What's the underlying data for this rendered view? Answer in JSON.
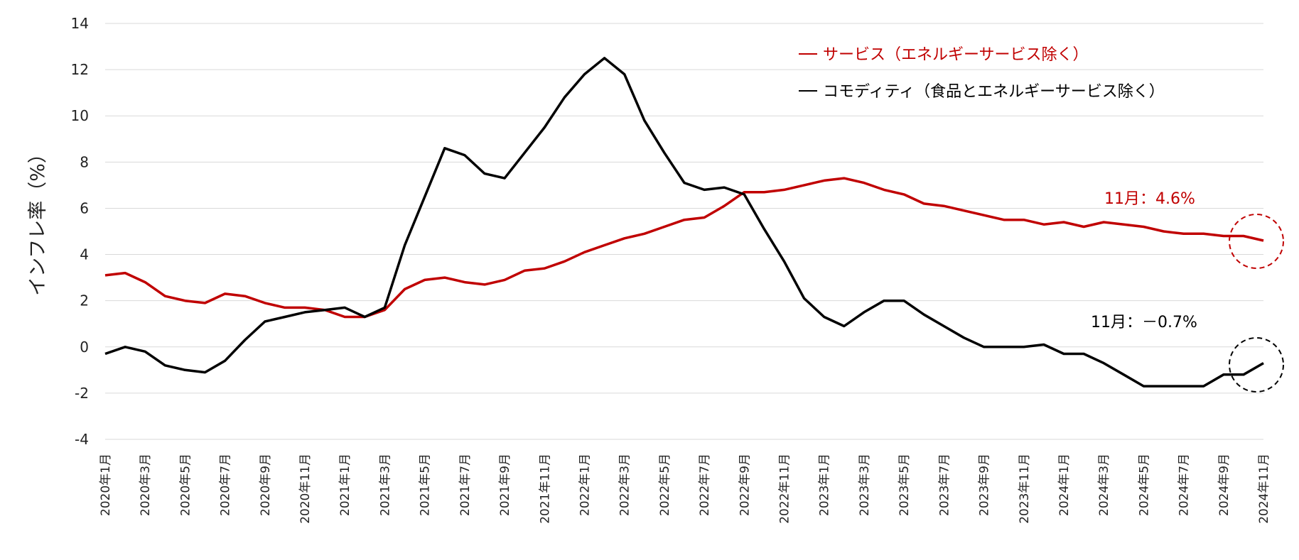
{
  "chart_data": {
    "type": "line",
    "ylabel": "インフレ率（%）",
    "ylim": [
      -4,
      14
    ],
    "yticks": [
      -4,
      -2,
      0,
      2,
      4,
      6,
      8,
      10,
      12,
      14
    ],
    "grid": true,
    "legend_position": "top-right",
    "x": [
      "2020年1月",
      "2020年2月",
      "2020年3月",
      "2020年4月",
      "2020年5月",
      "2020年6月",
      "2020年7月",
      "2020年8月",
      "2020年9月",
      "2020年10月",
      "2020年11月",
      "2020年12月",
      "2021年1月",
      "2021年2月",
      "2021年3月",
      "2021年4月",
      "2021年5月",
      "2021年6月",
      "2021年7月",
      "2021年8月",
      "2021年9月",
      "2021年10月",
      "2021年11月",
      "2021年12月",
      "2022年1月",
      "2022年2月",
      "2022年3月",
      "2022年4月",
      "2022年5月",
      "2022年6月",
      "2022年7月",
      "2022年8月",
      "2022年9月",
      "2022年10月",
      "2022年11月",
      "2022年12月",
      "2023年1月",
      "2023年2月",
      "2023年3月",
      "2023年4月",
      "2023年5月",
      "2023年6月",
      "2023年7月",
      "2023年8月",
      "2023年9月",
      "2023年10月",
      "2023年11月",
      "2023年12月",
      "2024年1月",
      "2024年2月",
      "2024年3月",
      "2024年4月",
      "2024年5月",
      "2024年6月",
      "2024年7月",
      "2024年8月",
      "2024年9月",
      "2024年10月",
      "2024年11月"
    ],
    "xtick_labels": [
      "2020年1月",
      "2020年3月",
      "2020年5月",
      "2020年7月",
      "2020年9月",
      "2020年11月",
      "2021年1月",
      "2021年3月",
      "2021年5月",
      "2021年7月",
      "2021年9月",
      "2021年11月",
      "2022年1月",
      "2022年3月",
      "2022年5月",
      "2022年7月",
      "2022年9月",
      "2022年11月",
      "2023年1月",
      "2023年3月",
      "2023年5月",
      "2023年7月",
      "2023年9月",
      "2023年11月",
      "2024年1月",
      "2024年3月",
      "2024年5月",
      "2024年7月",
      "2024年9月",
      "2024年11月"
    ],
    "series": [
      {
        "name": "サービス（エネルギーサービス除く）",
        "color": "#c00000",
        "values": [
          3.1,
          3.2,
          2.8,
          2.2,
          2.0,
          1.9,
          2.3,
          2.2,
          1.9,
          1.7,
          1.7,
          1.6,
          1.3,
          1.3,
          1.6,
          2.5,
          2.9,
          3.0,
          2.8,
          2.7,
          2.9,
          3.3,
          3.4,
          3.7,
          4.1,
          4.4,
          4.7,
          4.9,
          5.2,
          5.5,
          5.6,
          6.1,
          6.7,
          6.7,
          6.8,
          7.0,
          7.2,
          7.3,
          7.1,
          6.8,
          6.6,
          6.2,
          6.1,
          5.9,
          5.7,
          5.5,
          5.5,
          5.3,
          5.4,
          5.2,
          5.4,
          5.3,
          5.2,
          5.0,
          4.9,
          4.9,
          4.8,
          4.8,
          4.6
        ]
      },
      {
        "name": "コモディティ（食品とエネルギーサービス除く）",
        "color": "#000000",
        "values": [
          -0.3,
          0.0,
          -0.2,
          -0.8,
          -1.0,
          -1.1,
          -0.6,
          0.3,
          1.1,
          1.3,
          1.5,
          1.6,
          1.7,
          1.3,
          1.7,
          4.4,
          6.5,
          8.6,
          8.3,
          7.5,
          7.3,
          8.4,
          9.5,
          10.8,
          11.8,
          12.5,
          11.8,
          9.8,
          8.4,
          7.1,
          6.8,
          6.9,
          6.6,
          5.1,
          3.7,
          2.1,
          1.3,
          0.9,
          1.5,
          2.0,
          2.0,
          1.4,
          0.9,
          0.4,
          0.0,
          0.0,
          0.0,
          0.1,
          -0.3,
          -0.3,
          -0.7,
          -1.2,
          -1.7,
          -1.7,
          -1.7,
          -1.7,
          -1.2,
          -1.2,
          -0.7
        ]
      }
    ],
    "annotations": [
      {
        "text": "11月：4.6%",
        "series": 0,
        "color": "#c00000"
      },
      {
        "text": "11月：－0.7%",
        "series": 1,
        "color": "#000000"
      }
    ]
  }
}
